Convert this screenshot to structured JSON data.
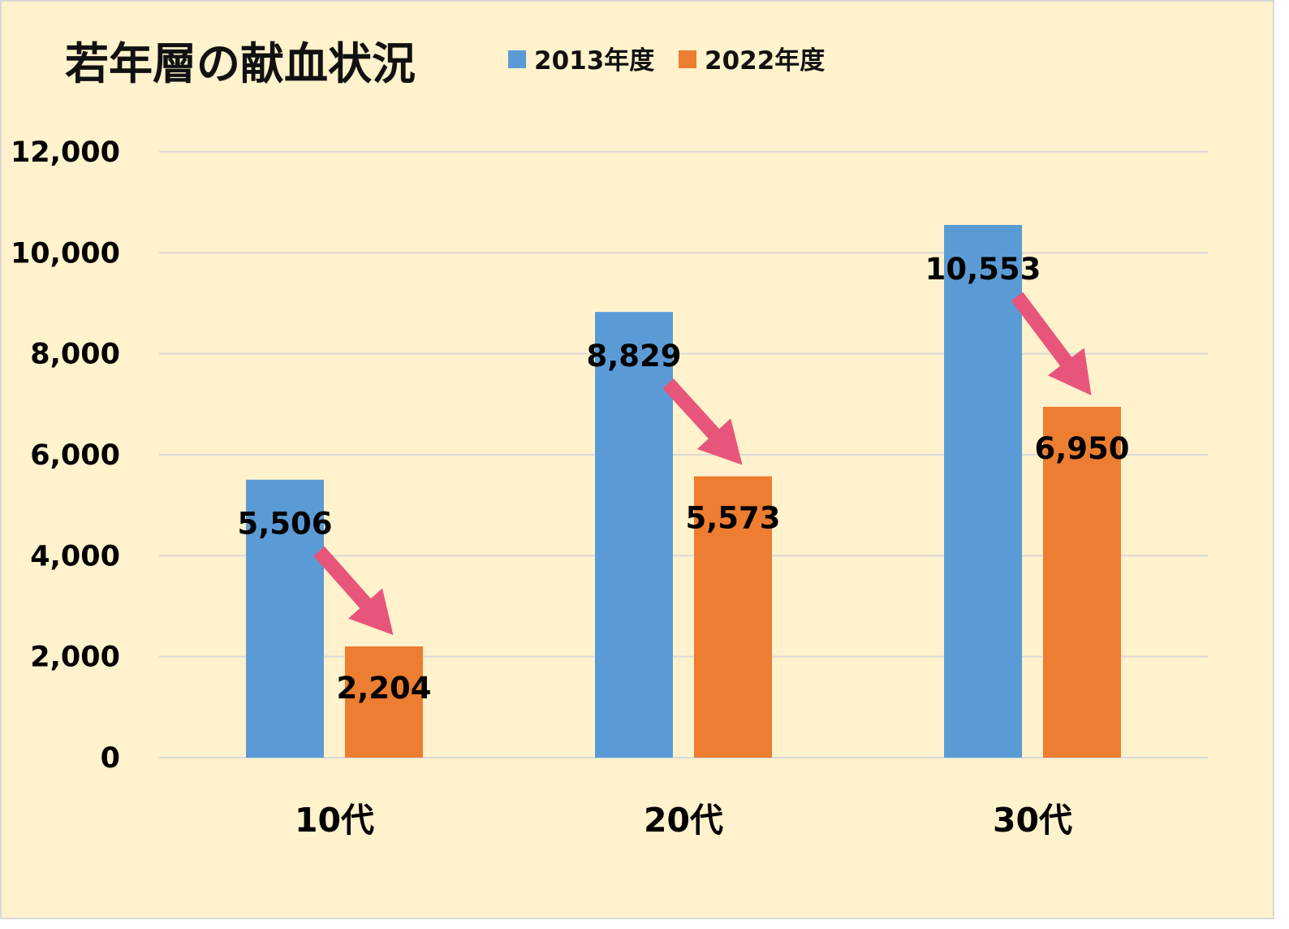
{
  "chart_data": {
    "type": "bar",
    "title": "若年層の献血状況",
    "categories": [
      "10代",
      "20代",
      "30代"
    ],
    "series": [
      {
        "name": "2013年度",
        "color": "#5b9bd5",
        "values": [
          5506,
          8829,
          10553
        ],
        "labels": [
          "5,506",
          "8,829",
          "10,553"
        ]
      },
      {
        "name": "2022年度",
        "color": "#ed7d31",
        "values": [
          2204,
          5573,
          6950
        ],
        "labels": [
          "2,204",
          "5,573",
          "6,950"
        ]
      }
    ],
    "ylim": [
      0,
      12000
    ],
    "yticks": [
      "0",
      "2,000",
      "4,000",
      "6,000",
      "8,000",
      "10,000",
      "12,000"
    ],
    "ytick_values": [
      0,
      2000,
      4000,
      6000,
      8000,
      10000,
      12000
    ],
    "grid": true,
    "legend_position": "top",
    "annotations": "pink arrows from each 2013年度 label to the 2022年度 bar",
    "arrow_color": "#e8557a",
    "background_color": "#fff2cc"
  }
}
